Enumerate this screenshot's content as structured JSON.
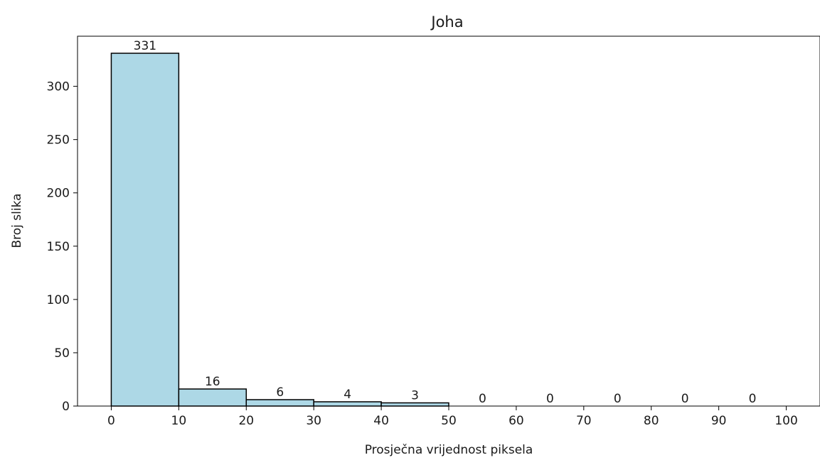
{
  "chart_data": {
    "type": "bar",
    "title": "Joha",
    "xlabel": "Prosječna vrijednost piksela",
    "ylabel": "Broj slika",
    "bin_edges": [
      0,
      10,
      20,
      30,
      40,
      50,
      60,
      70,
      80,
      90,
      100
    ],
    "values": [
      331,
      16,
      6,
      4,
      3,
      0,
      0,
      0,
      0,
      0
    ],
    "data_labels": [
      "331",
      "16",
      "6",
      "4",
      "3",
      "0",
      "0",
      "0",
      "0",
      "0"
    ],
    "xlim": [
      -5,
      105
    ],
    "ylim": [
      0,
      347
    ],
    "xticks": [
      0,
      10,
      20,
      30,
      40,
      50,
      60,
      70,
      80,
      90,
      100
    ],
    "xtick_labels": [
      "0",
      "10",
      "20",
      "30",
      "40",
      "50",
      "60",
      "70",
      "80",
      "90",
      "100"
    ],
    "yticks": [
      0,
      50,
      100,
      150,
      200,
      250,
      300
    ],
    "ytick_labels": [
      "0",
      "50",
      "100",
      "150",
      "200",
      "250",
      "300"
    ],
    "bar_color": "#add8e6",
    "edge_color": "#000000",
    "grid": false,
    "legend": "none"
  }
}
